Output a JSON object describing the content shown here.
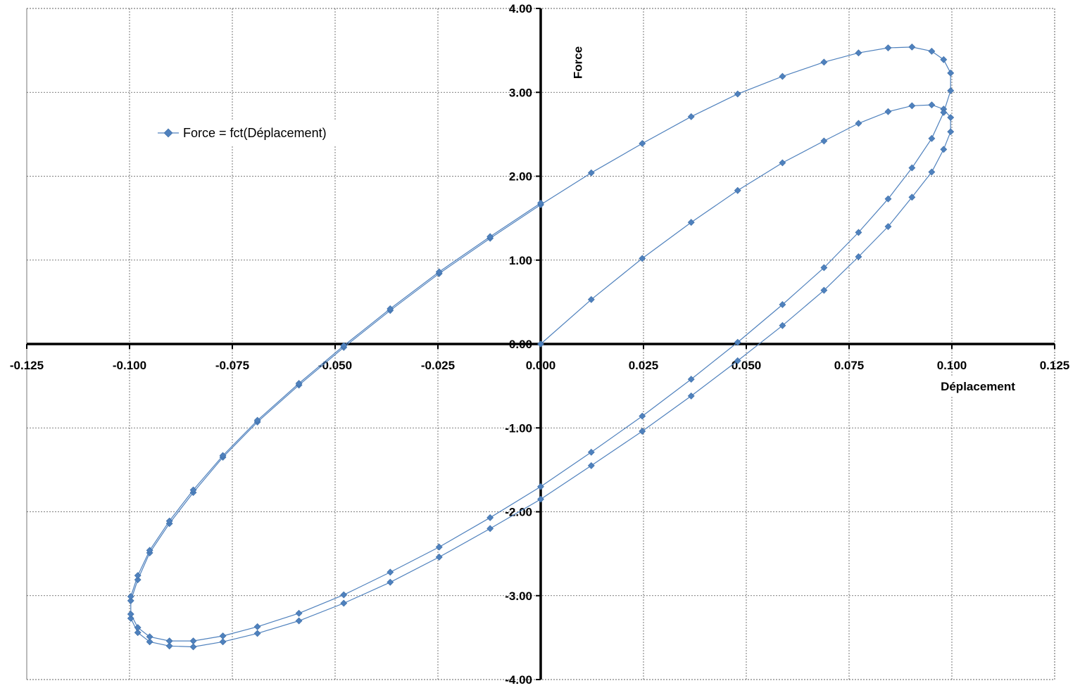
{
  "chart_data": {
    "type": "line",
    "title": "",
    "xlabel": "Déplacement",
    "ylabel": "Force",
    "xlim": [
      -0.125,
      0.125
    ],
    "ylim": [
      -4.0,
      4.0
    ],
    "grid": true,
    "legend_position": "upper-left",
    "x_ticks": [
      "-0.125",
      "-0.100",
      "-0.075",
      "-0.050",
      "-0.025",
      "0.000",
      "0.025",
      "0.050",
      "0.075",
      "0.100",
      "0.125"
    ],
    "y_ticks": [
      "4.00",
      "3.00",
      "2.00",
      "1.00",
      "0.00",
      "-1.00",
      "-2.00",
      "-3.00",
      "-4.00"
    ],
    "series": [
      {
        "name": "Force = fct(Déplacement)",
        "color": "#4F81BD",
        "marker": "diamond",
        "x": [
          0.0,
          0.0123,
          0.0247,
          0.0366,
          0.0479,
          0.0588,
          0.0689,
          0.0773,
          0.0845,
          0.0903,
          0.0951,
          0.098,
          0.0997,
          0.0997,
          0.098,
          0.0951,
          0.0903,
          0.0845,
          0.0773,
          0.0689,
          0.0588,
          0.0479,
          0.0366,
          0.0247,
          0.0123,
          0.0,
          -0.0123,
          -0.0247,
          -0.0366,
          -0.0479,
          -0.0588,
          -0.0689,
          -0.0773,
          -0.0845,
          -0.0903,
          -0.0951,
          -0.098,
          -0.0997,
          -0.0997,
          -0.098,
          -0.0951,
          -0.0903,
          -0.0845,
          -0.0773,
          -0.0689,
          -0.0588,
          -0.0479,
          -0.0366,
          -0.0247,
          -0.0123,
          0.0,
          0.0123,
          0.0247,
          0.0366,
          0.0479,
          0.0588,
          0.0689,
          0.0773,
          0.0845,
          0.0903,
          0.0951,
          0.098,
          0.0997,
          0.0997,
          0.098,
          0.0951,
          0.0903,
          0.0845,
          0.0773,
          0.0689,
          0.0588,
          0.0479,
          0.0366,
          0.0247,
          0.0123,
          0.0,
          -0.0123,
          -0.0247,
          -0.0366,
          -0.0479,
          -0.0588,
          -0.0689,
          -0.0773,
          -0.0845,
          -0.0903,
          -0.0951,
          -0.098,
          -0.0997,
          -0.0997,
          -0.098,
          -0.0951,
          -0.0903,
          -0.0845,
          -0.0773,
          -0.0689,
          -0.0588,
          -0.0479,
          -0.0366,
          -0.0247,
          -0.0123,
          0.0
        ],
        "y": [
          0.0,
          0.53,
          1.02,
          1.45,
          1.83,
          2.16,
          2.42,
          2.63,
          2.77,
          2.84,
          2.85,
          2.8,
          2.7,
          2.53,
          2.32,
          2.05,
          1.75,
          1.4,
          1.04,
          0.64,
          0.22,
          -0.2,
          -0.62,
          -1.04,
          -1.45,
          -1.85,
          -2.2,
          -2.54,
          -2.84,
          -3.09,
          -3.3,
          -3.45,
          -3.55,
          -3.61,
          -3.6,
          -3.55,
          -3.44,
          -3.27,
          -3.06,
          -2.81,
          -2.49,
          -2.14,
          -1.77,
          -1.35,
          -0.93,
          -0.49,
          -0.04,
          0.4,
          0.84,
          1.26,
          1.66,
          2.04,
          2.39,
          2.71,
          2.98,
          3.19,
          3.36,
          3.47,
          3.53,
          3.54,
          3.49,
          3.39,
          3.23,
          3.02,
          2.76,
          2.45,
          2.1,
          1.73,
          1.33,
          0.91,
          0.47,
          0.02,
          -0.42,
          -0.86,
          -1.29,
          -1.7,
          -2.07,
          -2.42,
          -2.72,
          -2.99,
          -3.21,
          -3.37,
          -3.48,
          -3.54,
          -3.54,
          -3.49,
          -3.38,
          -3.22,
          -3.01,
          -2.76,
          -2.46,
          -2.11,
          -1.74,
          -1.33,
          -0.91,
          -0.47,
          -0.02,
          0.42,
          0.86,
          1.28,
          1.68
        ]
      }
    ]
  }
}
